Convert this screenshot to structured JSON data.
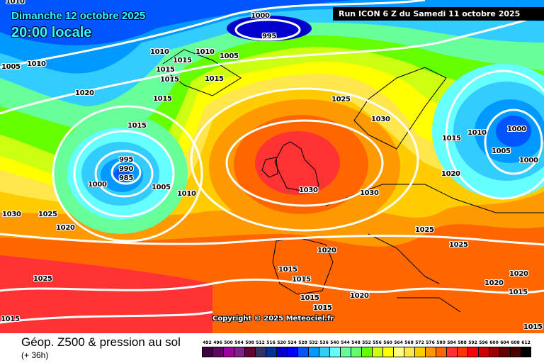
{
  "header": {
    "date": "Dimanche 12 octobre 2025",
    "time": "20:00 locale",
    "run": "Run ICON 6 Z du Samedi 11 octobre 2025"
  },
  "copyright": "Copyright © 2025 Meteociel.fr",
  "footer": {
    "title": "Géop. Z500 & pression au sol",
    "subtitle": "(+ 36h)"
  },
  "legend": {
    "labels": [
      "492",
      "496",
      "500",
      "504",
      "508",
      "512",
      "516",
      "520",
      "524",
      "528",
      "532",
      "536",
      "540",
      "544",
      "548",
      "552",
      "556",
      "560",
      "564",
      "568",
      "572",
      "576",
      "580",
      "584",
      "588",
      "592",
      "596",
      "600",
      "604",
      "608",
      "612"
    ],
    "colors": [
      "#400040",
      "#660066",
      "#a000a0",
      "#881c88",
      "#660033",
      "#333366",
      "#003399",
      "#0000cc",
      "#0000ff",
      "#0055ff",
      "#0099ff",
      "#33ccff",
      "#66ffff",
      "#66ff99",
      "#66ff66",
      "#66ff00",
      "#ccff11",
      "#ffff00",
      "#ffff80",
      "#ffe64d",
      "#ffcc00",
      "#ff9900",
      "#ff6600",
      "#ff3333",
      "#ff3300",
      "#ff0000",
      "#cc0000",
      "#990000",
      "#660000",
      "#4d0000",
      "#000000"
    ]
  },
  "map": {
    "isobar_labels": [
      "1010",
      "1000",
      "995",
      "1005",
      "1010",
      "1010",
      "1015",
      "1010",
      "1005",
      "1015",
      "1015",
      "1020",
      "1015",
      "1015",
      "1025",
      "1030",
      "1015",
      "1015",
      "1010",
      "1000",
      "1005",
      "1000",
      "1020",
      "995",
      "990",
      "985",
      "1000",
      "1005",
      "1010",
      "1030",
      "1030",
      "1030",
      "1025",
      "1020",
      "1025",
      "1025",
      "1020",
      "1015",
      "1015",
      "1020",
      "1020",
      "1015",
      "1025",
      "1020",
      "1015",
      "1015",
      "1015",
      "1015"
    ]
  }
}
